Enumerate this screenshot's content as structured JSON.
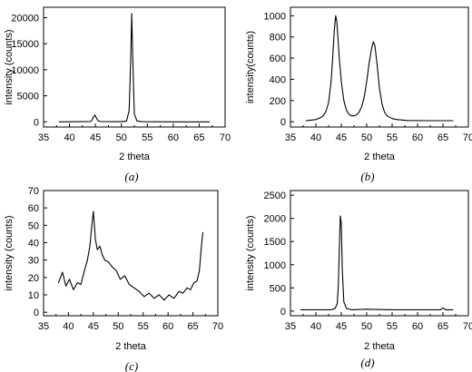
{
  "chart_data": [
    {
      "type": "line",
      "panel_label": "(a)",
      "xlabel": "2 theta",
      "ylabel": "intensity (counts)",
      "xlim": [
        35,
        70
      ],
      "ylim": [
        -1000,
        22000
      ],
      "xticks": [
        35,
        40,
        45,
        50,
        55,
        60,
        65,
        70
      ],
      "yticks": [
        0,
        5000,
        10000,
        15000,
        20000
      ],
      "grid": false,
      "series": [
        {
          "x": [
            38,
            44,
            44.3,
            44.6,
            44.9,
            45.2,
            45.5,
            46,
            50,
            51,
            51.5,
            51.8,
            52,
            52.2,
            52.5,
            53,
            54,
            60,
            67
          ],
          "y": [
            0,
            60,
            250,
            900,
            1300,
            700,
            200,
            40,
            20,
            150,
            2200,
            12000,
            20800,
            12000,
            1500,
            150,
            20,
            0,
            0
          ]
        }
      ]
    },
    {
      "type": "line",
      "panel_label": "(b)",
      "xlabel": "2 theta",
      "ylabel": "intensity(counts)",
      "xlim": [
        35,
        70
      ],
      "ylim": [
        -50,
        1080
      ],
      "xticks": [
        35,
        40,
        45,
        50,
        55,
        60,
        65,
        70
      ],
      "yticks": [
        0,
        200,
        400,
        600,
        800,
        1000
      ],
      "grid": false,
      "series": [
        {
          "x": [
            38,
            39,
            40,
            41,
            41.5,
            42,
            42.5,
            43,
            43.3,
            43.6,
            43.9,
            44.1,
            44.3,
            44.6,
            45,
            45.5,
            46,
            46.5,
            47,
            47.5,
            48,
            48.5,
            49,
            49.5,
            50,
            50.5,
            51,
            51.3,
            51.6,
            52,
            52.5,
            53,
            53.5,
            54,
            55,
            56,
            58,
            62,
            67
          ],
          "y": [
            10,
            15,
            20,
            40,
            60,
            100,
            180,
            380,
            600,
            850,
            1000,
            950,
            820,
            600,
            380,
            200,
            110,
            70,
            55,
            55,
            65,
            90,
            140,
            230,
            380,
            560,
            700,
            755,
            720,
            560,
            320,
            170,
            90,
            55,
            30,
            20,
            12,
            10,
            10
          ]
        }
      ]
    },
    {
      "type": "line",
      "panel_label": "(c)",
      "xlabel": "2 theta",
      "ylabel": "intensity (counts)",
      "xlim": [
        35,
        70
      ],
      "ylim": [
        -2,
        70
      ],
      "xticks": [
        35,
        40,
        45,
        50,
        55,
        60,
        65,
        70
      ],
      "yticks": [
        0,
        10,
        20,
        30,
        40,
        50,
        60,
        70
      ],
      "grid": false,
      "series": [
        {
          "x": [
            38,
            38.8,
            39.5,
            40.2,
            41,
            41.8,
            42.5,
            43.2,
            43.8,
            44.3,
            44.7,
            45,
            45.4,
            45.8,
            46.3,
            46.8,
            47.3,
            48,
            48.8,
            49.6,
            50.4,
            51.3,
            52.2,
            53.2,
            54.2,
            55.2,
            56.2,
            57.2,
            58.2,
            59.2,
            60.2,
            61.2,
            62.2,
            63,
            63.8,
            64.5,
            65.2,
            65.8,
            66.3,
            66.7,
            67
          ],
          "y": [
            17,
            23,
            15,
            19,
            13,
            17,
            16,
            24,
            30,
            38,
            50,
            58,
            42,
            36,
            38,
            33,
            30,
            29,
            26,
            24,
            19,
            21,
            16,
            14,
            12,
            9,
            11,
            8,
            10,
            7,
            10,
            8,
            12,
            11,
            14,
            13,
            17,
            18,
            24,
            38,
            46
          ]
        }
      ]
    },
    {
      "type": "line",
      "panel_label": "(d)",
      "xlabel": "2 theta",
      "ylabel": "intensity (counts)",
      "xlim": [
        35,
        70
      ],
      "ylim": [
        -100,
        2600
      ],
      "xticks": [
        35,
        40,
        45,
        50,
        55,
        60,
        65,
        70
      ],
      "yticks": [
        0,
        500,
        1000,
        1500,
        2000,
        2500
      ],
      "grid": false,
      "series": [
        {
          "x": [
            37,
            40,
            43,
            43.8,
            44.2,
            44.4,
            44.6,
            44.8,
            45,
            45.2,
            45.5,
            46,
            47,
            50,
            55,
            60,
            64.5,
            65,
            65.5,
            67
          ],
          "y": [
            30,
            30,
            30,
            60,
            160,
            500,
            1300,
            2050,
            1900,
            900,
            200,
            60,
            30,
            40,
            30,
            30,
            30,
            70,
            30,
            30
          ]
        }
      ]
    }
  ]
}
